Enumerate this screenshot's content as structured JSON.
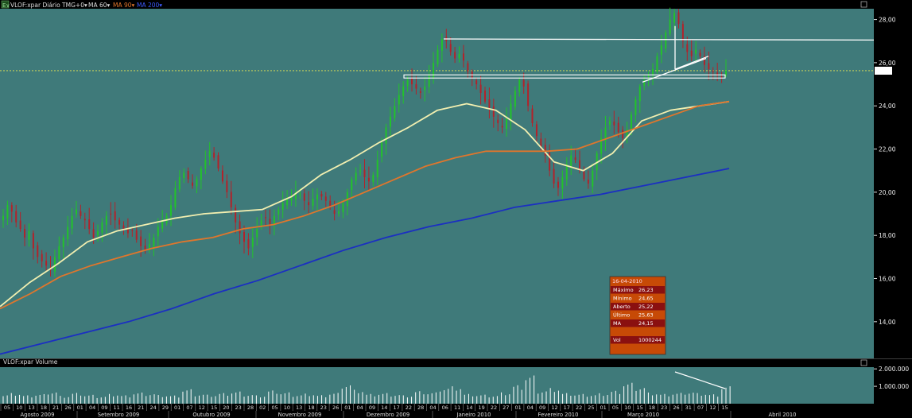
{
  "header": {
    "badge": "E∨",
    "symbol_label": "VLOF:xpar Diário TMG+0▾",
    "ma_short_label": "MA 60▾",
    "ma_mid_label": "MA 90▾",
    "ma_long_label": "MA 200▾"
  },
  "colors": {
    "panel_bg": "#3f7a7a",
    "up": "#22c32a",
    "down": "#b3222a",
    "ma_short": "#f2efb0",
    "ma_mid": "#e0762c",
    "ma_long": "#1b2fc2",
    "last_line": "#e7e552",
    "volume_bar": "#ffffff",
    "trendline": "#ffffff",
    "tooltip_bg": "#c74a06",
    "tooltip_dark": "#8a1010"
  },
  "volume_panel": {
    "title": "VLOF:xpar Volume"
  },
  "price_tag": "",
  "tooltip": {
    "date": "16-04-2010",
    "rows": [
      {
        "label": "Máximo",
        "value": "26,23"
      },
      {
        "label": "Mínimo",
        "value": "24,65"
      },
      {
        "label": "Aberto",
        "value": "25,22"
      },
      {
        "label": "Último",
        "value": "25,63"
      },
      {
        "label": "MA",
        "value": "24,15"
      },
      {
        "label": "",
        "value": ""
      },
      {
        "label": "Vol",
        "value": "1000244"
      }
    ]
  },
  "x_axis": {
    "days": [
      "05",
      "10",
      "13",
      "18",
      "21",
      "26",
      "01",
      "04",
      "09",
      "11",
      "16",
      "21",
      "24",
      "29",
      "01",
      "07",
      "12",
      "15",
      "20",
      "23",
      "28",
      "02",
      "05",
      "10",
      "13",
      "18",
      "23",
      "26",
      "01",
      "04",
      "09",
      "14",
      "17",
      "22",
      "28",
      "04",
      "06",
      "11",
      "14",
      "19",
      "22",
      "27",
      "01",
      "04",
      "09",
      "12",
      "17",
      "22",
      "25",
      "01",
      "05",
      "10",
      "15",
      "18",
      "23",
      "26",
      "31",
      "07",
      "12",
      "15"
    ],
    "months": [
      "Agosto 2009",
      "Setembro 2009",
      "Outubro 2009",
      "Novembro 2009",
      "Dezembro 2009",
      "Janeiro 2010",
      "Fevereiro 2010",
      "Março 2010",
      "Abril 2010"
    ]
  },
  "chart_data": [
    {
      "type": "candlestick",
      "title": "VLOF:xpar Diário",
      "y_axis": {
        "ticks": [
          "28,00",
          "26,00",
          "24,00",
          "22,00",
          "20,00",
          "18,00",
          "16,00",
          "14,00"
        ],
        "range": [
          12.3,
          28.5
        ]
      },
      "last_value": 25.63,
      "closes_approx": [
        18.9,
        19.4,
        19.1,
        18.6,
        18.3,
        17.9,
        18.2,
        17.4,
        17.0,
        16.8,
        16.6,
        16.4,
        17.0,
        17.5,
        17.9,
        18.4,
        18.9,
        19.2,
        18.9,
        18.7,
        18.3,
        17.9,
        18.2,
        18.6,
        18.9,
        19.0,
        18.7,
        18.5,
        18.3,
        18.1,
        18.2,
        17.8,
        17.5,
        17.3,
        17.6,
        17.9,
        18.4,
        18.7,
        18.9,
        19.4,
        20.2,
        20.7,
        20.9,
        20.6,
        20.3,
        20.6,
        21.1,
        21.5,
        21.9,
        21.6,
        21.1,
        20.5,
        20.0,
        19.3,
        18.6,
        18.1,
        17.7,
        17.4,
        17.9,
        18.3,
        18.7,
        18.8,
        18.5,
        18.9,
        19.2,
        19.5,
        19.7,
        19.8,
        20.0,
        19.9,
        19.6,
        19.4,
        19.7,
        19.9,
        19.8,
        19.6,
        19.3,
        19.0,
        19.1,
        19.5,
        20.0,
        20.6,
        20.9,
        21.0,
        20.7,
        20.5,
        20.8,
        21.5,
        22.3,
        23.0,
        23.5,
        24.0,
        24.5,
        24.9,
        25.2,
        25.0,
        24.8,
        24.6,
        24.9,
        25.4,
        26.0,
        26.6,
        27.1,
        27.0,
        26.5,
        26.2,
        26.4,
        26.1,
        25.6,
        25.3,
        25.0,
        24.6,
        24.2,
        23.9,
        23.5,
        23.2,
        23.0,
        23.4,
        24.1,
        24.7,
        25.2,
        24.9,
        24.0,
        23.2,
        22.6,
        22.1,
        21.7,
        21.0,
        20.4,
        20.2,
        20.7,
        21.3,
        21.7,
        21.5,
        21.0,
        20.6,
        20.4,
        21.0,
        21.8,
        22.5,
        23.0,
        23.3,
        23.1,
        22.8,
        22.5,
        22.9,
        23.6,
        24.3,
        24.9,
        25.2,
        25.4,
        25.7,
        26.3,
        26.8,
        27.4,
        28.0,
        28.3,
        27.8,
        27.0,
        26.5,
        26.3,
        26.6,
        26.3,
        25.9,
        25.7,
        25.6,
        25.4,
        25.3,
        25.63
      ],
      "series": [
        {
          "name": "MA 60",
          "values": [
            14.7,
            15.8,
            16.7,
            17.7,
            18.2,
            18.5,
            18.8,
            19.0,
            19.1,
            19.2,
            19.8,
            20.8,
            21.5,
            22.3,
            23.0,
            23.8,
            24.1,
            23.8,
            22.9,
            21.4,
            21.0,
            21.8,
            23.3,
            23.8,
            24.0,
            24.2
          ]
        },
        {
          "name": "MA 90",
          "values": [
            14.6,
            15.3,
            16.1,
            16.6,
            17.0,
            17.4,
            17.7,
            17.9,
            18.3,
            18.5,
            18.9,
            19.4,
            20.0,
            20.6,
            21.2,
            21.6,
            21.9,
            21.9,
            21.9,
            22.0,
            22.5,
            23.0,
            23.5,
            24.0,
            24.2
          ]
        },
        {
          "name": "MA 200",
          "values": [
            12.5,
            13.0,
            13.5,
            14.0,
            14.6,
            15.3,
            15.9,
            16.6,
            17.3,
            17.9,
            18.4,
            18.8,
            19.3,
            19.6,
            19.9,
            20.3,
            20.7,
            21.1
          ]
        }
      ]
    },
    {
      "type": "bar",
      "title": "VLOF:xpar Volume",
      "y_axis": {
        "ticks": [
          "2.000.000",
          "1.000.000"
        ],
        "range": [
          0,
          2100000
        ]
      },
      "values_approx": [
        520000,
        610000,
        480000,
        550000,
        700000,
        450000,
        620000,
        510000,
        430000,
        560000,
        480000,
        640000,
        590000,
        500000,
        470000,
        830000,
        560000,
        520000,
        610000,
        700000,
        540000,
        480000,
        760000,
        650000,
        520000,
        580000,
        490000,
        620000,
        1150000,
        800000,
        560000,
        610000,
        540000,
        480000,
        720000,
        650000,
        930000,
        1000000,
        560000,
        520000,
        480000,
        650000,
        1060000,
        1620000,
        770000,
        900000,
        610000,
        560000,
        530000,
        600000,
        740000,
        1200000,
        980000,
        640000,
        560000,
        620000,
        690000,
        610000,
        540000,
        1000244
      ]
    }
  ]
}
